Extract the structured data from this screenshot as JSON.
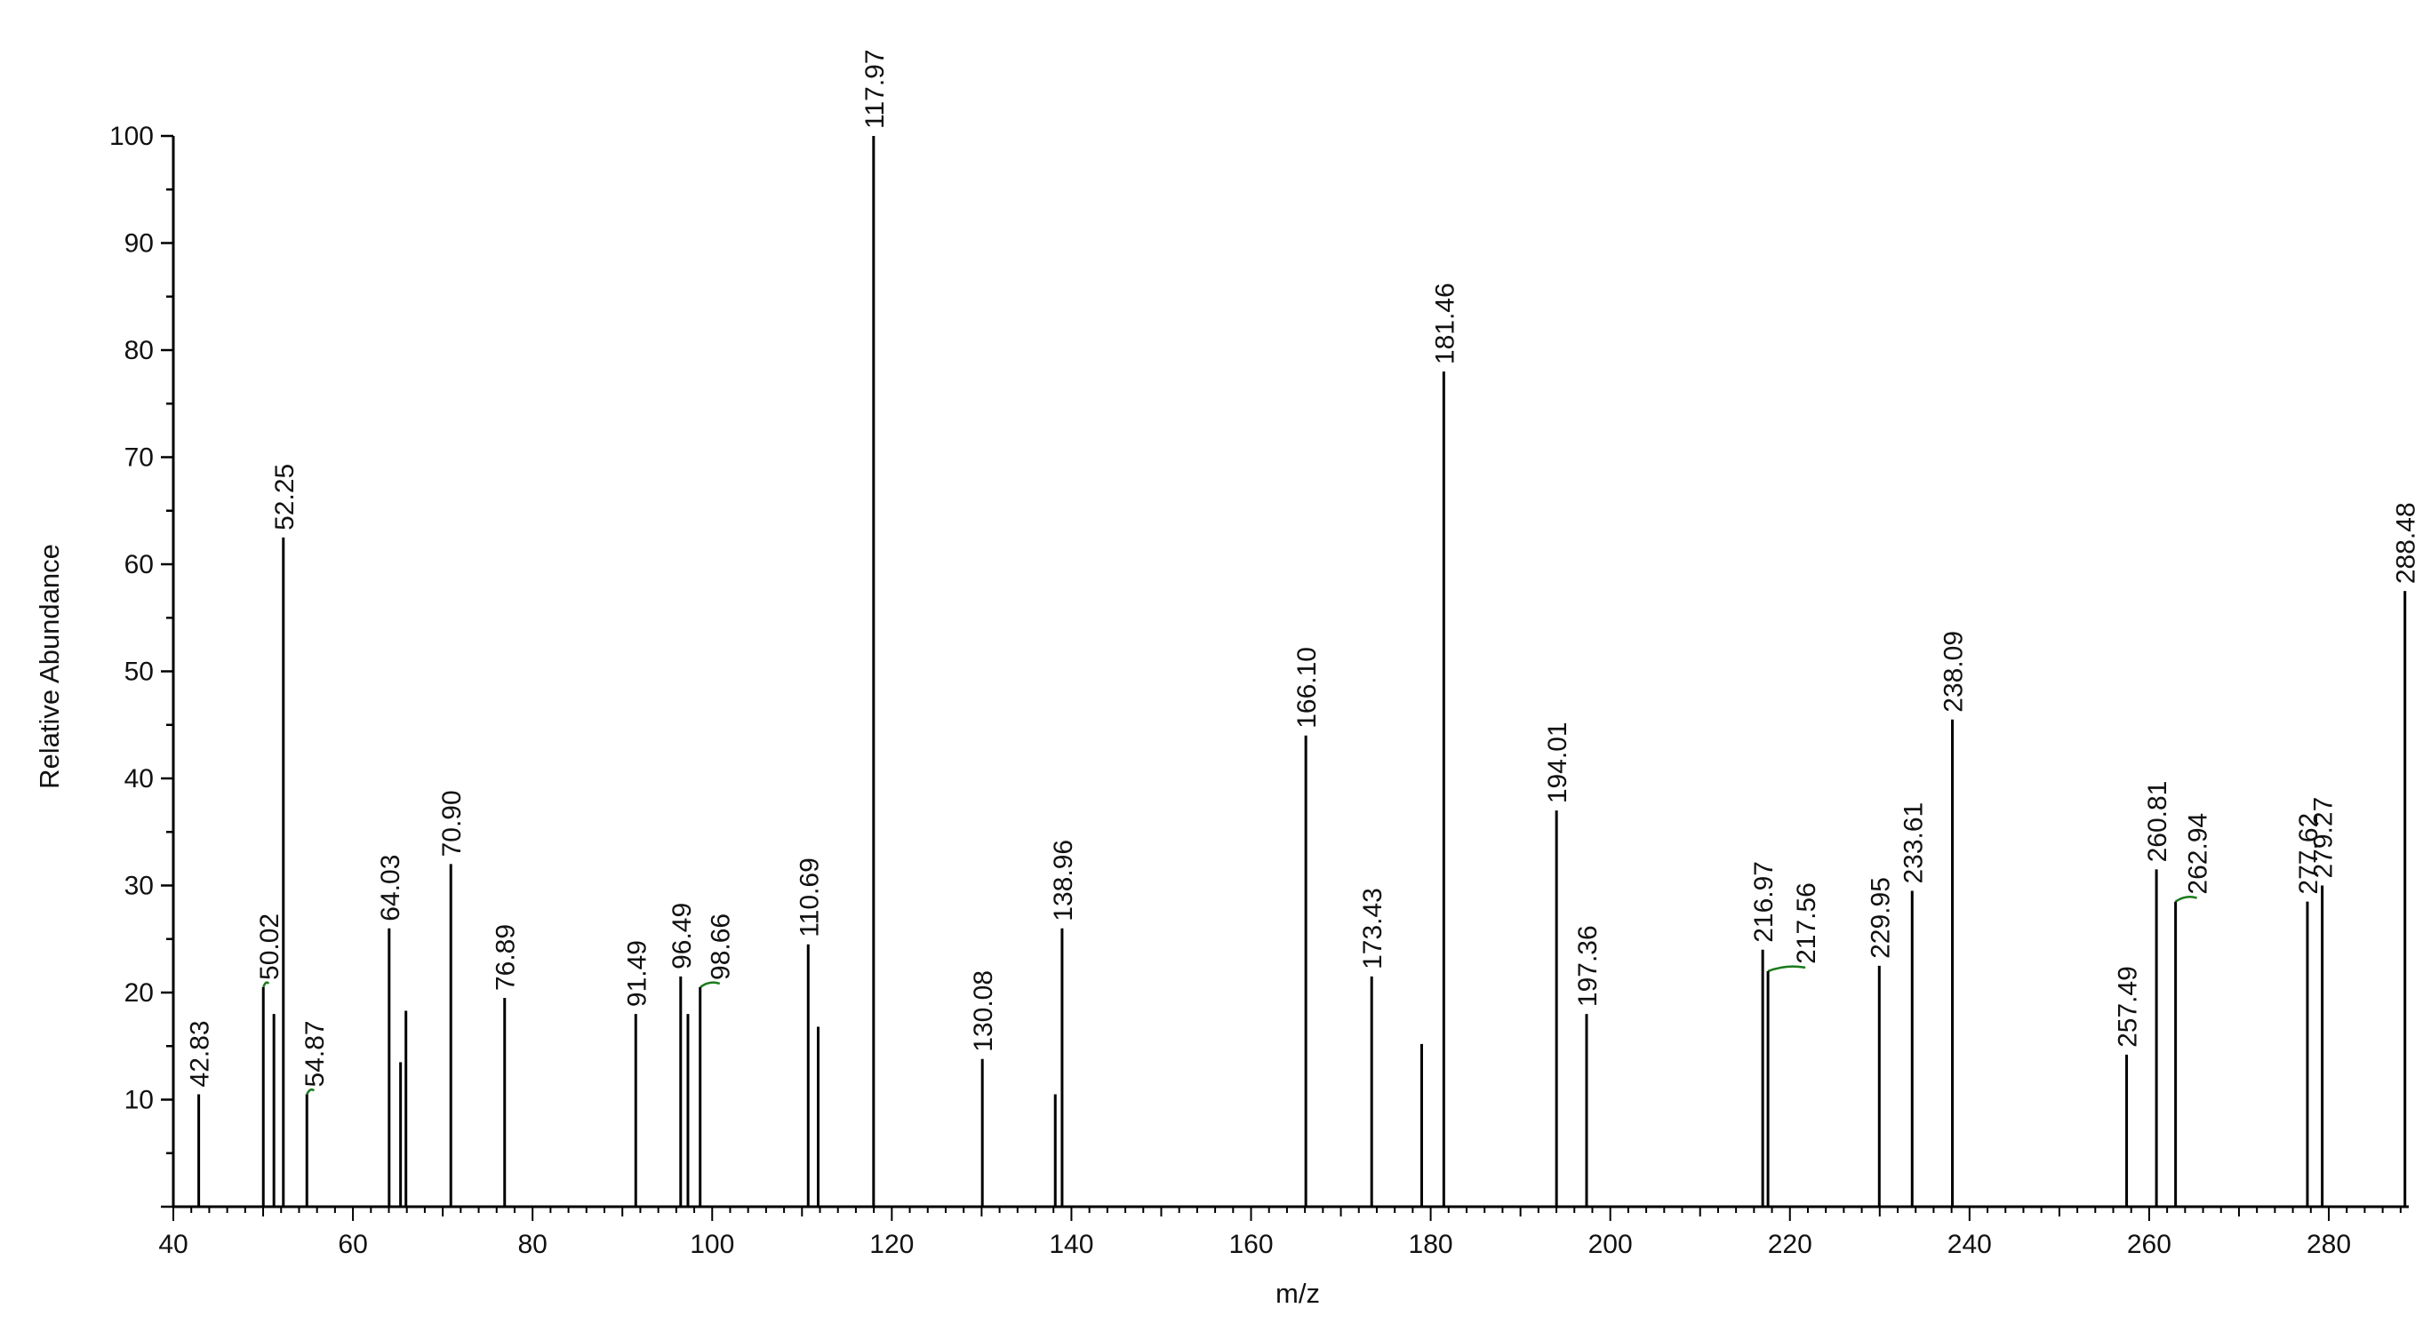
{
  "chart_data": {
    "type": "bar",
    "title": "",
    "xlabel": "m/z",
    "ylabel": "Relative Abundance",
    "xlim": [
      40,
      290
    ],
    "ylim": [
      0,
      100
    ],
    "x_ticks": [
      40,
      60,
      80,
      100,
      120,
      140,
      160,
      180,
      200,
      220,
      240,
      260,
      280
    ],
    "y_ticks": [
      10,
      20,
      30,
      40,
      50,
      60,
      70,
      80,
      90,
      100
    ],
    "grid": false,
    "colors": {
      "line": "#000000",
      "connector": "#1a7a1a"
    },
    "peaks": [
      {
        "mz": 42.83,
        "abundance": 10.5,
        "label": "42.83"
      },
      {
        "mz": 50.02,
        "abundance": 20.5,
        "label": "50.02"
      },
      {
        "mz": 51.2,
        "abundance": 18.0,
        "label": ""
      },
      {
        "mz": 52.25,
        "abundance": 62.5,
        "label": "52.25"
      },
      {
        "mz": 54.87,
        "abundance": 10.5,
        "label": "54.87"
      },
      {
        "mz": 64.03,
        "abundance": 26.0,
        "label": "64.03"
      },
      {
        "mz": 65.3,
        "abundance": 13.5,
        "label": ""
      },
      {
        "mz": 65.9,
        "abundance": 18.3,
        "label": ""
      },
      {
        "mz": 70.9,
        "abundance": 32.0,
        "label": "70.90"
      },
      {
        "mz": 76.89,
        "abundance": 19.5,
        "label": "76.89"
      },
      {
        "mz": 91.49,
        "abundance": 18.0,
        "label": "91.49"
      },
      {
        "mz": 96.49,
        "abundance": 21.5,
        "label": "96.49"
      },
      {
        "mz": 97.3,
        "abundance": 18.0,
        "label": ""
      },
      {
        "mz": 98.66,
        "abundance": 20.5,
        "label": "98.66"
      },
      {
        "mz": 110.69,
        "abundance": 24.5,
        "label": "110.69"
      },
      {
        "mz": 111.8,
        "abundance": 16.8,
        "label": ""
      },
      {
        "mz": 117.97,
        "abundance": 100.0,
        "label": "117.97"
      },
      {
        "mz": 130.08,
        "abundance": 13.8,
        "label": "130.08"
      },
      {
        "mz": 138.2,
        "abundance": 10.5,
        "label": ""
      },
      {
        "mz": 138.96,
        "abundance": 26.0,
        "label": "138.96"
      },
      {
        "mz": 166.1,
        "abundance": 44.0,
        "label": "166.10"
      },
      {
        "mz": 173.43,
        "abundance": 21.5,
        "label": "173.43"
      },
      {
        "mz": 179.0,
        "abundance": 15.2,
        "label": ""
      },
      {
        "mz": 181.46,
        "abundance": 78.0,
        "label": "181.46"
      },
      {
        "mz": 194.01,
        "abundance": 37.0,
        "label": "194.01"
      },
      {
        "mz": 197.36,
        "abundance": 18.0,
        "label": "197.36"
      },
      {
        "mz": 216.97,
        "abundance": 24.0,
        "label": "216.97"
      },
      {
        "mz": 217.56,
        "abundance": 22.0,
        "label": "217.56"
      },
      {
        "mz": 229.95,
        "abundance": 22.5,
        "label": "229.95"
      },
      {
        "mz": 233.61,
        "abundance": 29.5,
        "label": "233.61"
      },
      {
        "mz": 238.09,
        "abundance": 45.5,
        "label": "238.09"
      },
      {
        "mz": 257.49,
        "abundance": 14.2,
        "label": "257.49"
      },
      {
        "mz": 260.81,
        "abundance": 31.5,
        "label": "260.81"
      },
      {
        "mz": 262.94,
        "abundance": 28.5,
        "label": "262.94"
      },
      {
        "mz": 277.62,
        "abundance": 28.5,
        "label": "277.62"
      },
      {
        "mz": 279.27,
        "abundance": 30.0,
        "label": "279.27"
      },
      {
        "mz": 288.48,
        "abundance": 57.5,
        "label": "288.48"
      }
    ]
  }
}
